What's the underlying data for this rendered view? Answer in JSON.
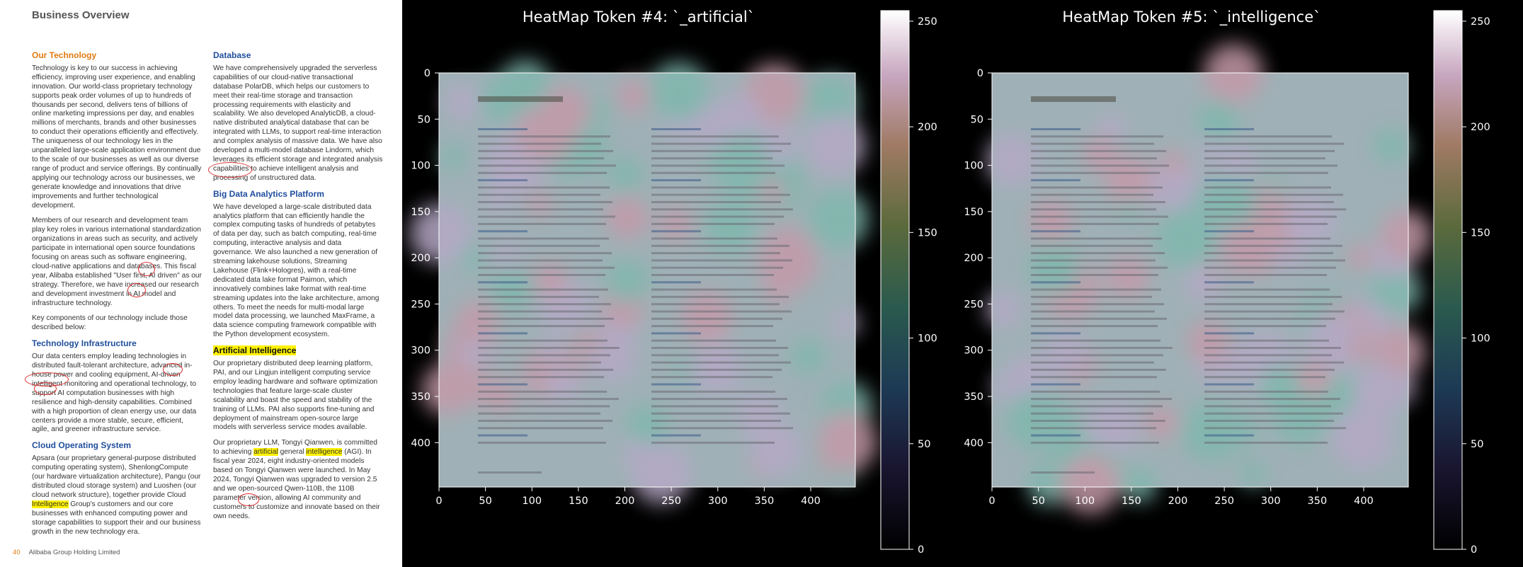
{
  "document": {
    "title": "Business Overview",
    "footer_page": "40",
    "footer_company": "Alibaba Group Holding Limited",
    "left_column": [
      {
        "heading": "Our Technology",
        "heading_color": "orange",
        "paragraphs": [
          "Technology is key to our success in achieving efficiency, improving user experience, and enabling innovation. Our world-class proprietary technology supports peak order volumes of up to hundreds of thousands per second, delivers tens of billions of online marketing impressions per day, and enables millions of merchants, brands and other businesses to conduct their operations efficiently and effectively. The uniqueness of our technology lies in the unparalleled large-scale application environment due to the scale of our businesses as well as our diverse range of product and service offerings. By continually applying our technology across our businesses, we generate knowledge and innovations that drive improvements and further technological development.",
          "Members of our research and development team play key roles in various international standardization organizations in areas such as security, and actively participate in international open source foundations focusing on areas such as software engineering, cloud-native applications and databases. This fiscal year, Alibaba established \"User first, AI driven\" as our strategy. Therefore, we have increased our research and development investment in AI model and infrastructure technology.",
          "Key components of our technology include those described below:"
        ]
      },
      {
        "heading": "Technology Infrastructure",
        "heading_color": "blue",
        "paragraphs": [
          "Our data centers employ leading technologies in distributed fault-tolerant architecture, advanced in-house power and cooling equipment, AI-driven intelligent monitoring and operational technology, to support AI computation businesses with high resilience and high-density capabilities. Combined with a high proportion of clean energy use, our data centers provide a more stable, secure, efficient, agile, and greener infrastructure service."
        ]
      },
      {
        "heading": "Cloud Operating System",
        "heading_color": "blue",
        "paragraphs": [
          "Apsara (our proprietary general-purpose distributed computing operating system), ShenlongCompute (our hardware virtualization architecture), Pangu (our distributed cloud storage system) and Luoshen (our cloud network structure), together provide Cloud Intelligence Group's customers and our core businesses with enhanced computing power and storage capabilities to support their and our business growth in the new technology era."
        ]
      }
    ],
    "right_column": [
      {
        "heading": "Database",
        "heading_color": "blue",
        "paragraphs": [
          "We have comprehensively upgraded the serverless capabilities of our cloud-native transactional database PolarDB, which helps our customers to meet their real-time storage and transaction processing requirements with elasticity and scalability. We also developed AnalyticDB, a cloud-native distributed analytical database that can be integrated with LLMs, to support real-time interaction and complex analysis of massive data. We have also developed a multi-model database Lindorm, which leverages its efficient storage and integrated analysis capabilities to achieve intelligent analysis and processing of unstructured data."
        ]
      },
      {
        "heading": "Big Data Analytics Platform",
        "heading_color": "blue",
        "paragraphs": [
          "We have developed a large-scale distributed data analytics platform that can efficiently handle the complex computing tasks of hundreds of petabytes of data per day, such as batch computing, real-time computing, interactive analysis and data governance. We also launched a new generation of streaming lakehouse solutions, Streaming Lakehouse (Flink+Hologres), with a real-time dedicated data lake format Paimon, which innovatively combines lake format with real-time streaming updates into the lake architecture, among others. To meet the needs for multi-modal large model data processing, we launched MaxFrame, a data science computing framework compatible with the Python development ecosystem."
        ]
      },
      {
        "heading": "Artificial Intelligence",
        "heading_color": "highlight",
        "paragraphs": [
          "Our proprietary distributed deep learning platform, PAI, and our Lingjun intelligent computing service employ leading hardware and software optimization technologies that feature large-scale cluster scalability and boast the speed and stability of the training of LLMs. PAI also supports fine-tuning and deployment of mainstream open-source large models with serverless service modes available.",
          "Our proprietary LLM, Tongyi Qianwen, is committed to achieving artificial general intelligence (AGI). In fiscal year 2024, eight industry-oriented models based on Tongyi Qianwen were launched. In May 2024, Tongyi Qianwen was upgraded to version 2.5 and we open-sourced Qwen-110B, the 110B parameter version, allowing AI community and customers to customize and innovate based on their own needs."
        ]
      }
    ]
  },
  "chart_data": [
    {
      "type": "heatmap",
      "title": "HeatMap Token #4: `_artificial`",
      "x_ticks": [
        "0",
        "50",
        "100",
        "150",
        "200",
        "250",
        "300",
        "350",
        "400"
      ],
      "y_ticks": [
        "0",
        "50",
        "100",
        "150",
        "200",
        "250",
        "300",
        "350",
        "400"
      ],
      "colorbar_ticks": [
        "0",
        "50",
        "100",
        "150",
        "200",
        "250"
      ],
      "xlim": [
        0,
        448
      ],
      "ylim": [
        448,
        0
      ],
      "clim": [
        0,
        255
      ],
      "colormap": "cubehelix",
      "overlay_image": "document page"
    },
    {
      "type": "heatmap",
      "title": "HeatMap Token #5: `_intelligence`",
      "x_ticks": [
        "0",
        "50",
        "100",
        "150",
        "200",
        "250",
        "300",
        "350",
        "400"
      ],
      "y_ticks": [
        "0",
        "50",
        "100",
        "150",
        "200",
        "250",
        "300",
        "350",
        "400"
      ],
      "colorbar_ticks": [
        "0",
        "50",
        "100",
        "150",
        "200",
        "250"
      ],
      "xlim": [
        0,
        448
      ],
      "ylim": [
        448,
        0
      ],
      "clim": [
        0,
        255
      ],
      "colormap": "cubehelix",
      "overlay_image": "document page"
    }
  ]
}
